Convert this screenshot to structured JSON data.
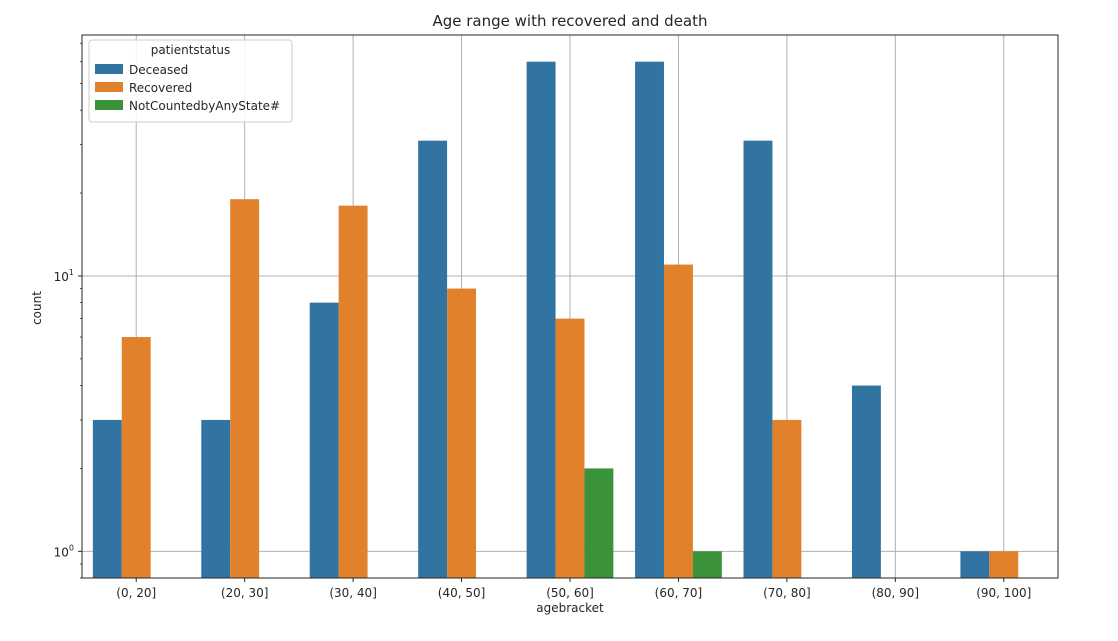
{
  "chart_data": {
    "type": "bar",
    "title": "Age range with recovered and death",
    "xlabel": "agebracket",
    "ylabel": "count",
    "yscale": "log",
    "ylim": [
      0.8,
      75
    ],
    "grid": true,
    "legend": {
      "title": "patientstatus",
      "placement": "top-left"
    },
    "categories": [
      "(0, 20]",
      "(20, 30]",
      "(30, 40]",
      "(40, 50]",
      "(50, 60]",
      "(60, 70]",
      "(70, 80]",
      "(80, 90]",
      "(90, 100]"
    ],
    "yticks": [
      {
        "value": 1,
        "base": "10",
        "exp": "0"
      },
      {
        "value": 10,
        "base": "10",
        "exp": "1"
      }
    ],
    "series": [
      {
        "name": "Deceased",
        "color": "#3274a1",
        "values": [
          3,
          3,
          8,
          31,
          60,
          60,
          31,
          4,
          1
        ]
      },
      {
        "name": "Recovered",
        "color": "#e1812c",
        "values": [
          6,
          19,
          18,
          9,
          7,
          11,
          3,
          null,
          1
        ]
      },
      {
        "name": "NotCountedbyAnyState#",
        "color": "#3a923a",
        "values": [
          null,
          null,
          null,
          null,
          2,
          1,
          null,
          null,
          null
        ]
      }
    ]
  }
}
